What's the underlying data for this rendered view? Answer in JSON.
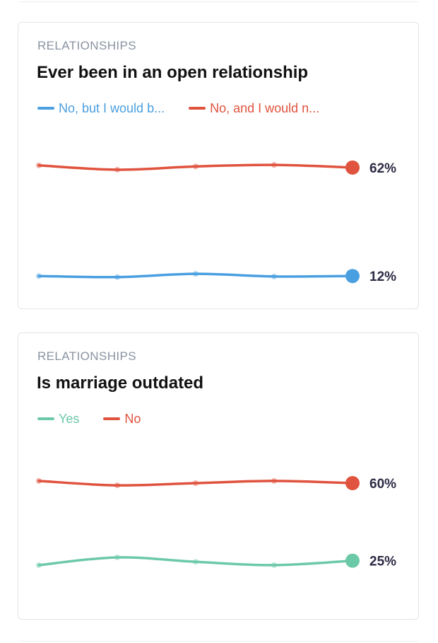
{
  "colors": {
    "blue": "#4a9fe0",
    "red": "#e0533e",
    "teal": "#6cc9a8",
    "label": "#2c2b45"
  },
  "cards": [
    {
      "category": "RELATIONSHIPS",
      "title": "Ever been in an open relationship",
      "legend": [
        {
          "label": "No, but I would b...",
          "color": "#4a9fe0"
        },
        {
          "label": "No, and I would n...",
          "color": "#e0533e"
        }
      ]
    },
    {
      "category": "RELATIONSHIPS",
      "title": "Is marriage outdated",
      "legend": [
        {
          "label": "Yes",
          "color": "#6cc9a8"
        },
        {
          "label": "No",
          "color": "#e0533e"
        }
      ]
    }
  ],
  "chart_data": [
    {
      "type": "line",
      "title": "Ever been in an open relationship",
      "x_count": 5,
      "ylim": [
        0,
        75
      ],
      "grid": false,
      "legend_position": "top-left",
      "series": [
        {
          "name": "No, but I would b...",
          "color": "#4a9fe0",
          "values": [
            12,
            11.5,
            13,
            11.8,
            12
          ],
          "end_label": "12%"
        },
        {
          "name": "No, and I would n...",
          "color": "#e0533e",
          "values": [
            63,
            61,
            62.5,
            63.2,
            62
          ],
          "end_label": "62%"
        }
      ]
    },
    {
      "type": "line",
      "title": "Is marriage outdated",
      "x_count": 5,
      "ylim": [
        0,
        75
      ],
      "grid": false,
      "legend_position": "top-left",
      "series": [
        {
          "name": "Yes",
          "color": "#6cc9a8",
          "values": [
            23,
            26.5,
            24.5,
            23,
            25
          ],
          "end_label": "25%"
        },
        {
          "name": "No",
          "color": "#e0533e",
          "values": [
            61,
            59,
            60,
            61,
            60
          ],
          "end_label": "60%"
        }
      ]
    }
  ]
}
